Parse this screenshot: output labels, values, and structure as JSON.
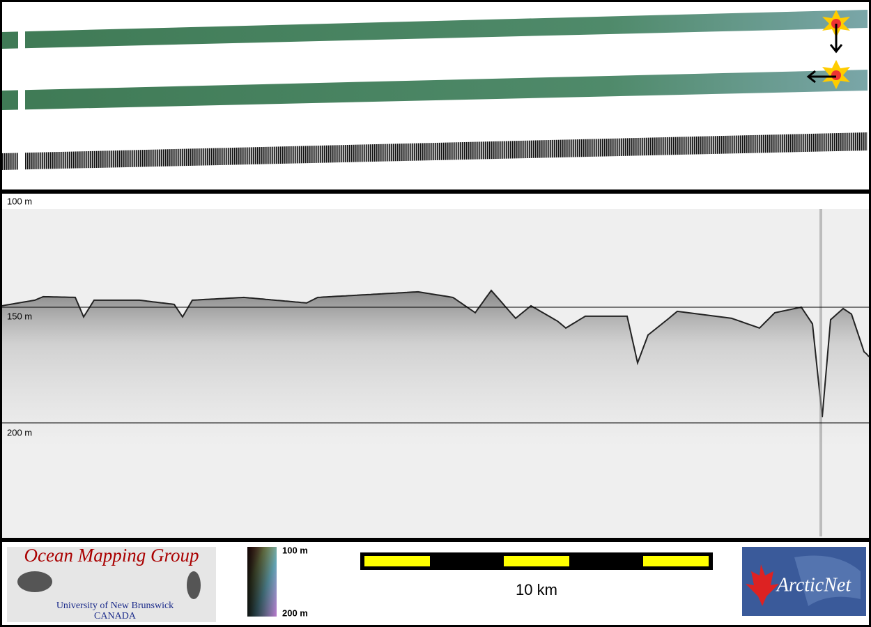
{
  "swath_panel": {},
  "sonar_panel": {
    "depth_labels": [
      "100 m",
      "150 m",
      "200 m"
    ]
  },
  "footer": {
    "omg_logo": {
      "title": "Ocean Mapping Group",
      "line1": "University of New Brunswick",
      "line2": "CANADA"
    },
    "color_scale": {
      "top": "100 m",
      "bottom": "200 m"
    },
    "scale_bar": {
      "label": "10 km"
    },
    "arcticnet_logo": {
      "text": "ArcticNet"
    }
  }
}
